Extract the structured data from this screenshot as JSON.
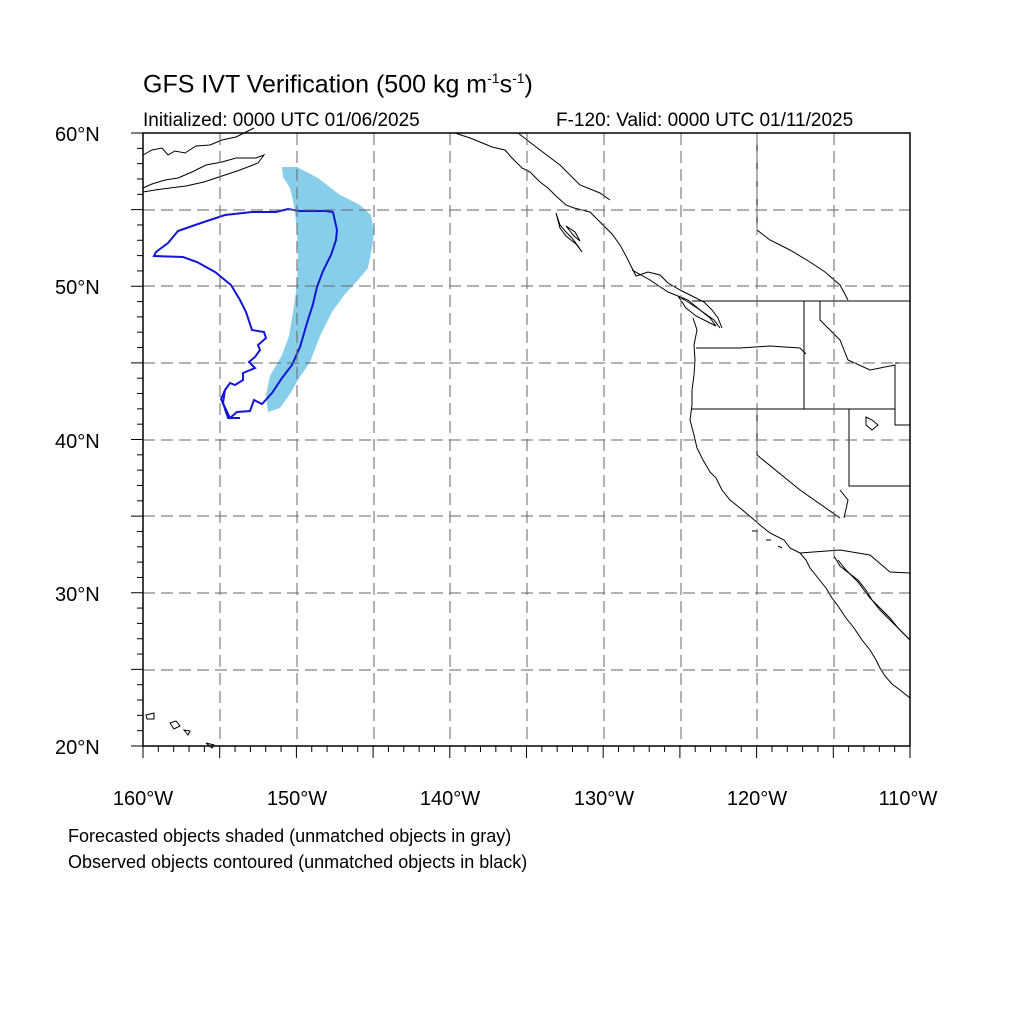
{
  "title": {
    "prefix": "GFS IVT Verification (500 kg m",
    "exp1": "-1",
    "mid": "s",
    "exp2": "-1",
    "suffix": ")"
  },
  "initialized": "Initialized: 0000 UTC 01/06/2025",
  "valid": "F-120: Valid: 0000 UTC 01/11/2025",
  "lat_labels": [
    "60°N",
    "50°N",
    "40°N",
    "30°N",
    "20°N"
  ],
  "lon_labels": [
    "160°W",
    "150°W",
    "140°W",
    "130°W",
    "120°W",
    "110°W"
  ],
  "notes": [
    "Forecasted objects shaded (unmatched objects in gray)",
    "Observed objects contoured (unmatched objects in black)"
  ],
  "map": {
    "lon_range": [
      -160,
      -110
    ],
    "lat_range": [
      20,
      60
    ],
    "grid_spacing_deg": 5,
    "forecast_fill_color": "#87ceeb",
    "observed_line_color": "#1515d6"
  }
}
